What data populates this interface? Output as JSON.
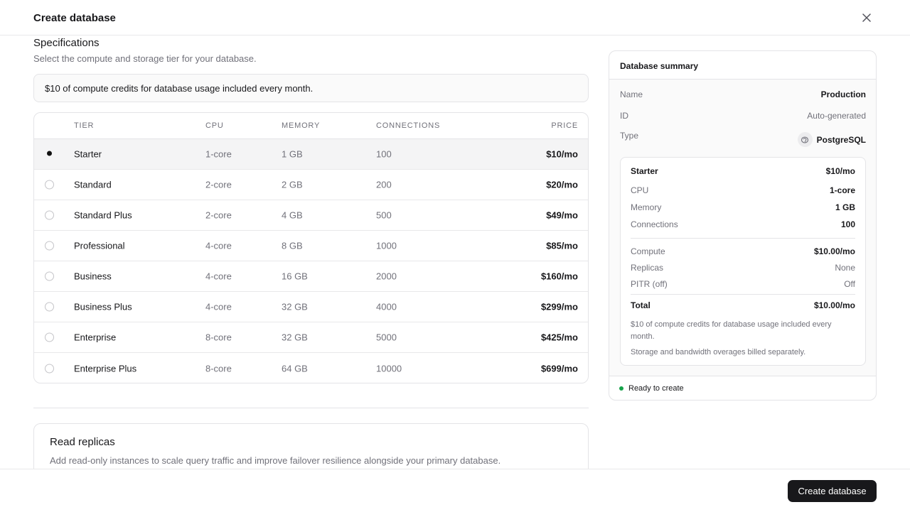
{
  "dialog": {
    "title": "Create database",
    "close_icon": "close-icon"
  },
  "specs": {
    "title": "Specifications",
    "subtitle": "Select the compute and storage tier for your database.",
    "credit_banner": "$10 of compute credits for database usage included every month."
  },
  "table": {
    "headers": {
      "tier": "TIER",
      "cpu": "CPU",
      "memory": "MEMORY",
      "connections": "CONNECTIONS",
      "price": "PRICE"
    },
    "rows": [
      {
        "name": "Starter",
        "cpu": "1-core",
        "memory": "1 GB",
        "connections": "100",
        "price": "$10/mo",
        "selected": true
      },
      {
        "name": "Standard",
        "cpu": "2-core",
        "memory": "2 GB",
        "connections": "200",
        "price": "$20/mo",
        "selected": false
      },
      {
        "name": "Standard Plus",
        "cpu": "2-core",
        "memory": "4 GB",
        "connections": "500",
        "price": "$49/mo",
        "selected": false
      },
      {
        "name": "Professional",
        "cpu": "4-core",
        "memory": "8 GB",
        "connections": "1000",
        "price": "$85/mo",
        "selected": false
      },
      {
        "name": "Business",
        "cpu": "4-core",
        "memory": "16 GB",
        "connections": "2000",
        "price": "$160/mo",
        "selected": false
      },
      {
        "name": "Business Plus",
        "cpu": "4-core",
        "memory": "32 GB",
        "connections": "4000",
        "price": "$299/mo",
        "selected": false
      },
      {
        "name": "Enterprise",
        "cpu": "8-core",
        "memory": "32 GB",
        "connections": "5000",
        "price": "$425/mo",
        "selected": false
      },
      {
        "name": "Enterprise Plus",
        "cpu": "8-core",
        "memory": "64 GB",
        "connections": "10000",
        "price": "$699/mo",
        "selected": false
      }
    ]
  },
  "replicas": {
    "title": "Read replicas",
    "subtitle": "Add read-only instances to scale query traffic and improve failover resilience alongside your primary database."
  },
  "summary": {
    "title": "Database summary",
    "name_label": "Name",
    "name_value": "Production",
    "id_label": "ID",
    "id_value": "Auto-generated",
    "type_label": "Type",
    "type_value": "PostgreSQL",
    "type_icon": "postgres-icon",
    "plan": {
      "tier": "Starter",
      "tier_price": "$10/mo",
      "cpu_label": "CPU",
      "cpu_value": "1-core",
      "memory_label": "Memory",
      "memory_value": "1 GB",
      "connections_label": "Connections",
      "connections_value": "100",
      "compute_label": "Compute",
      "compute_value": "$10.00/mo",
      "replicas_label": "Replicas",
      "replicas_value": "None",
      "pitr_label": "PITR (off)",
      "pitr_value": "Off",
      "total_label": "Total",
      "total_value": "$10.00/mo",
      "note_credits": "$10 of compute credits for database usage included every month.",
      "note_storage": "Storage and bandwidth overages billed separately."
    },
    "status": "Ready to create",
    "status_color": "#16a34a"
  },
  "footer": {
    "create_label": "Create database"
  }
}
